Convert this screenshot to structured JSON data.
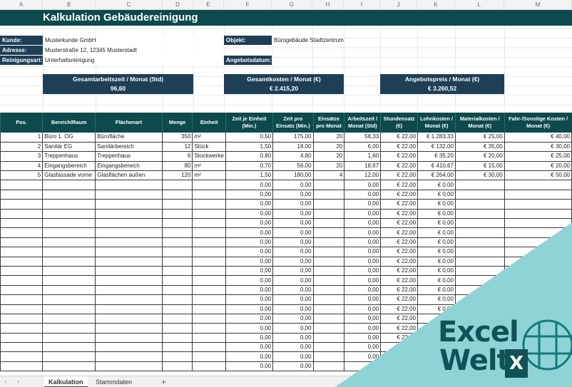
{
  "columns": [
    "A",
    "B",
    "C",
    "D",
    "E",
    "F",
    "G",
    "H",
    "I",
    "J",
    "K",
    "L",
    "M"
  ],
  "colors": {
    "title_band": "#0c4a4d",
    "label_fill": "#1e3f56",
    "overlay_teal": "#8ed4d6",
    "logo_dark": "#0f5257"
  },
  "sheet": {
    "title": "Kalkulation Gebäudereinigung",
    "info": {
      "kunde_label": "Kunde:",
      "kunde_value": "Musterkunde GmbH",
      "adresse_label": "Adresse:",
      "adresse_value": "Musterstraße 12, 12345 Musterstadt",
      "reinigungsart_label": "Reinigungsart:",
      "reinigungsart_value": "Unterhaltsreinigung",
      "objekt_label": "Objekt:",
      "objekt_value": "Bürogebäude Stadtzentrum",
      "angebotsdatum_label": "Angebotsdatum:",
      "angebotsdatum_value": ""
    },
    "kpis": [
      {
        "label": "Gesamtarbeitszeit / Monat (Std)",
        "value": "96,60"
      },
      {
        "label": "Gesamtkosten / Monat (€)",
        "value": "€ 2.415,20"
      },
      {
        "label": "Angebotspreis / Monat (€)",
        "value": "€ 3.260,52"
      }
    ],
    "table_headers": [
      "Pos.",
      "Bereich/Raum",
      "Flächenart",
      "Menge",
      "Einheit",
      "Zeit je Einheit (Min.)",
      "Zeit pro Einsatz (Min.)",
      "Einsätze pro Monat",
      "Arbeitszeit / Monat (Std)",
      "Stundensatz (€)",
      "Lohnkosten / Monat (€)",
      "Materialkosten / Monat (€)",
      "Fahr-/Sonstige Kosten / Monat (€)"
    ],
    "rows": [
      [
        "1",
        "Büro 1. OG",
        "Bürofläche",
        "350",
        "m²",
        "0,50",
        "175,00",
        "20",
        "58,33",
        "€ 22,00",
        "€ 1.283,33",
        "€ 25,00",
        "€ 40,00"
      ],
      [
        "2",
        "Sanitär EG",
        "Sanitärbereich",
        "12",
        "Stück",
        "1,50",
        "18,00",
        "20",
        "6,00",
        "€ 22,00",
        "€ 132,00",
        "€ 35,00",
        "€ 30,00"
      ],
      [
        "3",
        "Treppenhaus",
        "Treppenhaus",
        "6",
        "Stockwerke",
        "0,80",
        "4,80",
        "20",
        "1,60",
        "€ 22,00",
        "€ 35,20",
        "€ 20,00",
        "€ 25,00"
      ],
      [
        "4",
        "Eingangsbereich",
        "Eingangsbereich",
        "80",
        "m²",
        "0,70",
        "56,00",
        "20",
        "18,67",
        "€ 22,00",
        "€ 410,67",
        "€ 15,00",
        "€ 20,00"
      ],
      [
        "5",
        "Glasfassade vorne",
        "Glasflächen außen",
        "120",
        "m²",
        "1,50",
        "180,00",
        "4",
        "12,00",
        "€ 22,00",
        "€ 264,00",
        "€ 30,00",
        "€ 50,00"
      ],
      [
        "",
        "",
        "",
        "",
        "",
        "0,00",
        "0,00",
        "",
        "0,00",
        "€ 22,00",
        "€ 0,00",
        "",
        ""
      ],
      [
        "",
        "",
        "",
        "",
        "",
        "0,00",
        "0,00",
        "",
        "0,00",
        "€ 22,00",
        "€ 0,00",
        "",
        ""
      ],
      [
        "",
        "",
        "",
        "",
        "",
        "0,00",
        "0,00",
        "",
        "0,00",
        "€ 22,00",
        "€ 0,00",
        "",
        ""
      ],
      [
        "",
        "",
        "",
        "",
        "",
        "0,00",
        "0,00",
        "",
        "0,00",
        "€ 22,00",
        "€ 0,00",
        "",
        ""
      ],
      [
        "",
        "",
        "",
        "",
        "",
        "0,00",
        "0,00",
        "",
        "0,00",
        "€ 22,00",
        "€ 0,00",
        "",
        ""
      ],
      [
        "",
        "",
        "",
        "",
        "",
        "0,00",
        "0,00",
        "",
        "0,00",
        "€ 22,00",
        "€ 0,00",
        "",
        ""
      ],
      [
        "",
        "",
        "",
        "",
        "",
        "0,00",
        "0,00",
        "",
        "0,00",
        "€ 22,00",
        "€ 0,00",
        "",
        ""
      ],
      [
        "",
        "",
        "",
        "",
        "",
        "0,00",
        "0,00",
        "",
        "0,00",
        "€ 22,00",
        "€ 0,00",
        "",
        ""
      ],
      [
        "",
        "",
        "",
        "",
        "",
        "0,00",
        "0,00",
        "",
        "0,00",
        "€ 22,00",
        "€ 0,00",
        "",
        ""
      ],
      [
        "",
        "",
        "",
        "",
        "",
        "0,00",
        "0,00",
        "",
        "0,00",
        "€ 22,00",
        "€ 0,00",
        "",
        ""
      ],
      [
        "",
        "",
        "",
        "",
        "",
        "0,00",
        "0,00",
        "",
        "0,00",
        "€ 22,00",
        "€ 0,00",
        "",
        ""
      ],
      [
        "",
        "",
        "",
        "",
        "",
        "0,00",
        "0,00",
        "",
        "0,00",
        "€ 22,00",
        "€ 0,00",
        "",
        ""
      ],
      [
        "",
        "",
        "",
        "",
        "",
        "0,00",
        "0,00",
        "",
        "0,00",
        "€ 22,00",
        "€ 0,00",
        "",
        ""
      ],
      [
        "",
        "",
        "",
        "",
        "",
        "0,00",
        "0,00",
        "",
        "0,00",
        "€ 22,00",
        "€ 0,00",
        "",
        ""
      ],
      [
        "",
        "",
        "",
        "",
        "",
        "0,00",
        "0,00",
        "",
        "0,00",
        "€ 22,00",
        "€ 0,00",
        "",
        ""
      ],
      [
        "",
        "",
        "",
        "",
        "",
        "0,00",
        "0,00",
        "",
        "0,00",
        "€ 22,00",
        "€ 0,00",
        "",
        ""
      ],
      [
        "",
        "",
        "",
        "",
        "",
        "0,00",
        "0,00",
        "",
        "0,00",
        "€ 22,00",
        "€ 0,00",
        "",
        ""
      ],
      [
        "",
        "",
        "",
        "",
        "",
        "0,00",
        "0,00",
        "",
        "0,00",
        "€ 22,00",
        "€ 0,00",
        "",
        ""
      ],
      [
        "",
        "",
        "",
        "",
        "",
        "0,00",
        "0,00",
        "",
        "0,00",
        "€ 22,00",
        "€ 0,00",
        "",
        ""
      ],
      [
        "",
        "",
        "",
        "",
        "",
        "0,00",
        "0,00",
        "",
        "0,00",
        "€ 22,00",
        "€ 0,00",
        "",
        ""
      ]
    ]
  },
  "tabs": {
    "prev_icon": "‹",
    "next_icon": "›",
    "items": [
      {
        "label": "Kalkulation",
        "active": true
      },
      {
        "label": "Stammdaten",
        "active": false
      }
    ],
    "add_icon": "+"
  },
  "branding": {
    "line1": "Excel",
    "line2": "Welt",
    "badge": "X"
  }
}
